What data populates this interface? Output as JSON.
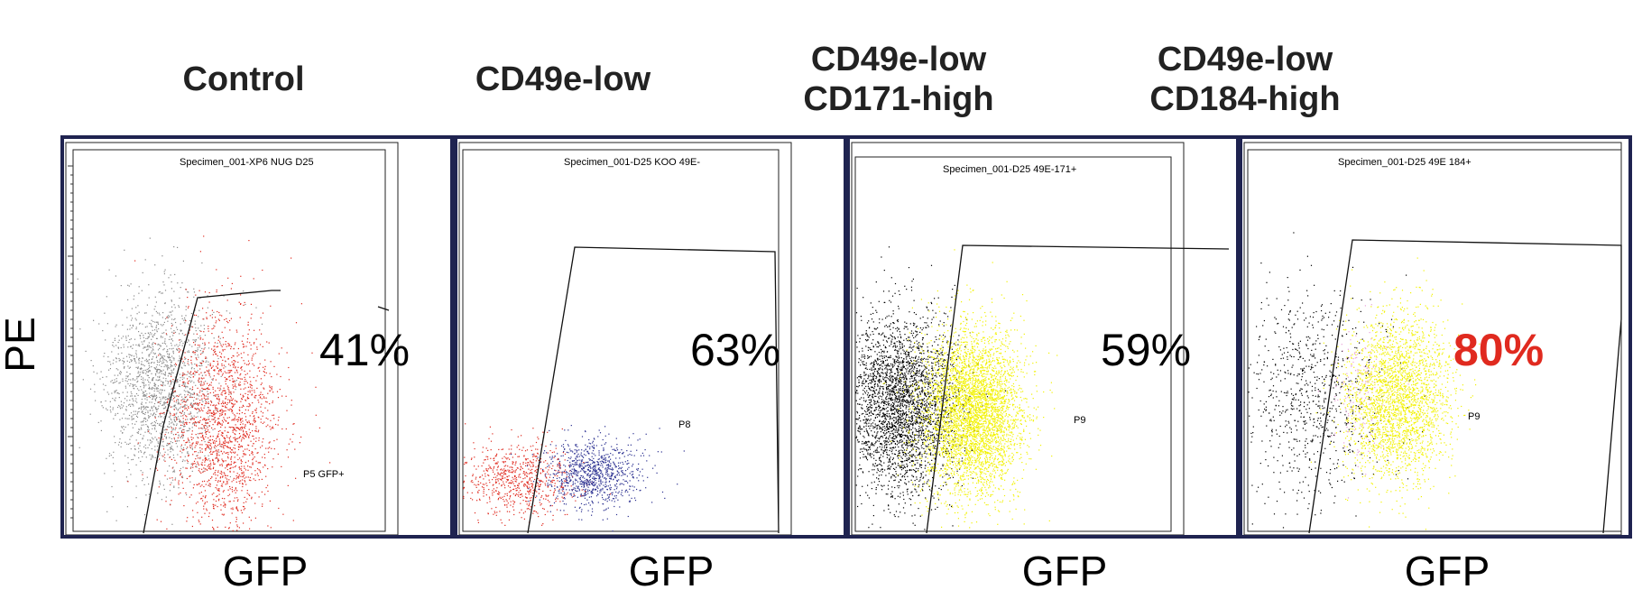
{
  "y_axis_label": "PE",
  "colors": {
    "border": "#1f2350",
    "black": "#000000",
    "grey": "#8a8a8a",
    "red": "#e02a1f",
    "blue": "#2a2f90",
    "yellow": "#f2f200",
    "pink": "#e8a0d8",
    "highlight_red": "#e02a1f"
  },
  "chart_data": [
    {
      "type": "scatter",
      "title": "Control",
      "xlabel": "GFP",
      "ylabel": "PE",
      "specimen": "Specimen_001-XP6 NUG D25",
      "gate_label": "P5 GFP+",
      "percent": "41%",
      "percent_value": 41,
      "percent_highlight": false,
      "populations": [
        {
          "color": "grey",
          "x": 0.28,
          "y": 0.62,
          "sx": 0.09,
          "sy": 0.12,
          "count": 1700
        },
        {
          "color": "red",
          "x": 0.48,
          "y": 0.72,
          "sx": 0.09,
          "sy": 0.14,
          "count": 1800
        }
      ]
    },
    {
      "type": "scatter",
      "title": "CD49e-low",
      "xlabel": "GFP",
      "ylabel": "PE",
      "specimen": "Specimen_001-D25 KOO 49E-",
      "gate_label": "P8",
      "percent": "63%",
      "percent_value": 63,
      "percent_highlight": false,
      "populations": [
        {
          "color": "red",
          "x": 0.17,
          "y": 0.86,
          "sx": 0.09,
          "sy": 0.05,
          "count": 700
        },
        {
          "color": "blue",
          "x": 0.41,
          "y": 0.85,
          "sx": 0.08,
          "sy": 0.045,
          "count": 900
        }
      ]
    },
    {
      "type": "scatter",
      "title": "CD49e-low\nCD171-high",
      "xlabel": "GFP",
      "ylabel": "PE",
      "specimen": "Specimen_001-D25 49E-171+",
      "gate_label": "P9",
      "percent": "59%",
      "percent_value": 59,
      "percent_highlight": false,
      "populations": [
        {
          "color": "black",
          "x": 0.14,
          "y": 0.66,
          "sx": 0.09,
          "sy": 0.12,
          "count": 3200
        },
        {
          "color": "yellow",
          "x": 0.37,
          "y": 0.68,
          "sx": 0.08,
          "sy": 0.11,
          "count": 4200
        }
      ]
    },
    {
      "type": "scatter",
      "title": "CD49e-low\nCD184-high",
      "xlabel": "GFP",
      "ylabel": "PE",
      "specimen": "Specimen_001-D25 49E 184+",
      "gate_label": "P9",
      "percent": "80%",
      "percent_value": 80,
      "percent_highlight": true,
      "populations": [
        {
          "color": "black",
          "x": 0.17,
          "y": 0.64,
          "sx": 0.1,
          "sy": 0.14,
          "count": 800
        },
        {
          "color": "pink",
          "x": 0.3,
          "y": 0.64,
          "sx": 0.04,
          "sy": 0.09,
          "count": 150
        },
        {
          "color": "yellow",
          "x": 0.4,
          "y": 0.65,
          "sx": 0.07,
          "sy": 0.11,
          "count": 2600
        }
      ]
    }
  ]
}
